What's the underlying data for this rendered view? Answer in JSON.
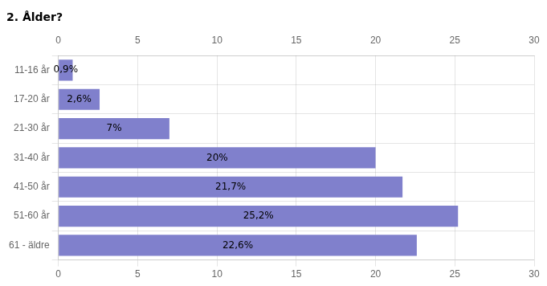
{
  "chart_data": {
    "type": "bar",
    "title": "2. Ålder?",
    "orientation": "horizontal",
    "categories": [
      "11-16 år",
      "17-20 år",
      "21-30 år",
      "31-40 år",
      "41-50 år",
      "51-60 år",
      "61 - äldre"
    ],
    "values": [
      0.9,
      2.6,
      7.0,
      20.0,
      21.7,
      25.2,
      22.6
    ],
    "value_labels": [
      "0,9%",
      "2,6%",
      "7%",
      "20%",
      "21,7%",
      "25,2%",
      "22,6%"
    ],
    "data_labels": true,
    "color": "#8080cc",
    "xlim": [
      0,
      30
    ],
    "xticks": [
      0,
      5,
      10,
      15,
      20,
      25,
      30
    ],
    "grid": true
  }
}
